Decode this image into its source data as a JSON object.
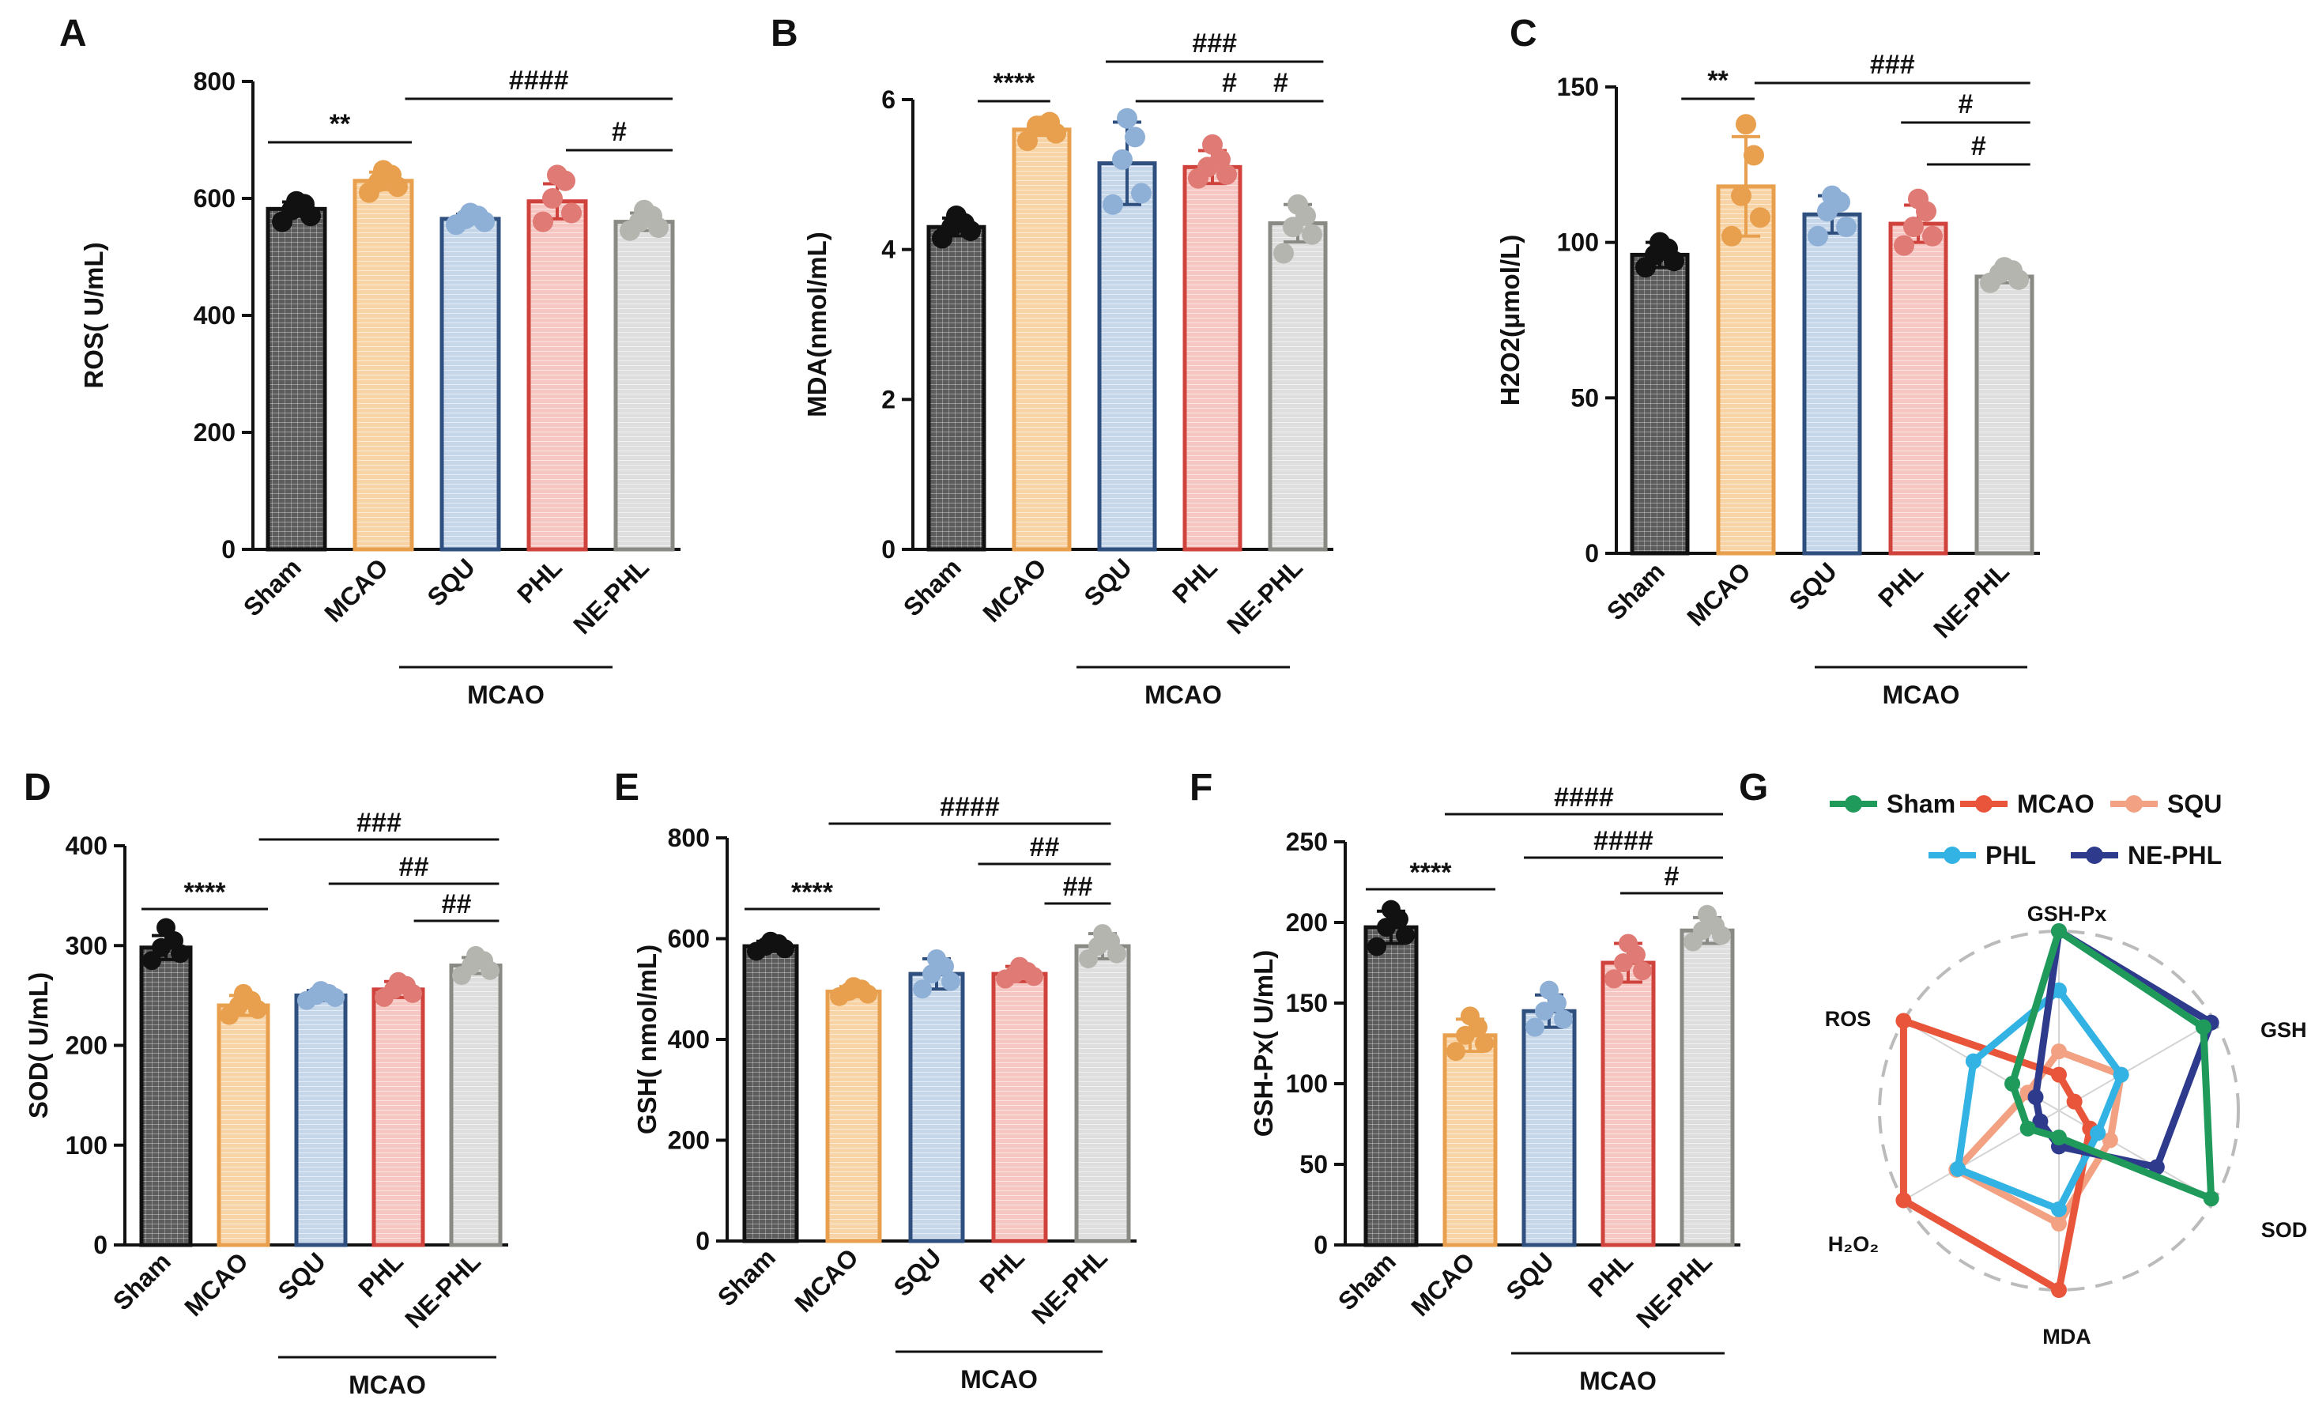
{
  "panel_letters": [
    "A",
    "B",
    "C",
    "D",
    "E",
    "F",
    "G"
  ],
  "group_label": "MCAO",
  "colors": {
    "Sham": {
      "edge": "#111111",
      "fill": "#5c5c5c",
      "dot": "#111111"
    },
    "MCAO": {
      "edge": "#e8a04e",
      "fill": "#f7d3a6",
      "dot": "#e8a04e"
    },
    "SQU": {
      "edge": "#2f4f7f",
      "fill": "#c7d7ea",
      "dot": "#8fb0d6"
    },
    "PHL": {
      "edge": "#d0433c",
      "fill": "#f6c6c2",
      "dot": "#e07a75"
    },
    "NE-PHL": {
      "edge": "#8a8a85",
      "fill": "#dedede",
      "dot": "#b5b5b0"
    }
  },
  "radar_colors": {
    "Sham": "#1f9a5a",
    "MCAO": "#e8553a",
    "SQU": "#f2a283",
    "PHL": "#33b3e3",
    "NE-PHL": "#2e3a8c"
  },
  "chart_data": [
    {
      "type": "bar",
      "panel": "A",
      "ylabel": "ROS( U/mL)",
      "categories": [
        "Sham",
        "MCAO",
        "SQU",
        "PHL",
        "NE-PHL"
      ],
      "values": [
        582,
        630,
        565,
        595,
        560
      ],
      "errors": [
        12,
        15,
        8,
        30,
        15
      ],
      "points": [
        [
          560,
          570,
          580,
          590,
          595
        ],
        [
          610,
          620,
          628,
          640,
          648
        ],
        [
          555,
          560,
          565,
          570,
          575
        ],
        [
          560,
          575,
          600,
          630,
          640
        ],
        [
          545,
          550,
          560,
          570,
          580
        ]
      ],
      "ylim": [
        0,
        800
      ],
      "yticks": [
        0,
        200,
        400,
        600,
        800
      ],
      "significance": [
        {
          "from": 0,
          "to": 1,
          "label": "**"
        },
        {
          "from": 1,
          "to": 4,
          "label": "####"
        },
        {
          "from": 3,
          "to": 4,
          "label": "#"
        }
      ]
    },
    {
      "type": "bar",
      "panel": "B",
      "ylabel": "MDA(nmol/mL)",
      "categories": [
        "Sham",
        "MCAO",
        "SQU",
        "PHL",
        "NE-PHL"
      ],
      "values": [
        4.3,
        5.6,
        5.15,
        5.1,
        4.35
      ],
      "errors": [
        0.12,
        0.08,
        0.55,
        0.22,
        0.25
      ],
      "points": [
        [
          4.15,
          4.25,
          4.3,
          4.35,
          4.45
        ],
        [
          5.45,
          5.55,
          5.65,
          5.7,
          5.65
        ],
        [
          4.6,
          4.75,
          5.2,
          5.5,
          5.75
        ],
        [
          4.95,
          5.0,
          5.1,
          5.2,
          5.4
        ],
        [
          3.95,
          4.2,
          4.3,
          4.45,
          4.6
        ]
      ],
      "ylim": [
        0,
        6
      ],
      "yticks": [
        0,
        2,
        4,
        6
      ],
      "significance": [
        {
          "from": 0,
          "to": 1,
          "label": "****"
        },
        {
          "from": 2,
          "to": 4,
          "label": "###"
        },
        {
          "from": 2,
          "to": 4,
          "label": "#"
        },
        {
          "from": 3,
          "to": 4,
          "label": "#"
        }
      ]
    },
    {
      "type": "bar",
      "panel": "C",
      "ylabel": "H2O2(μmol/L)",
      "categories": [
        "Sham",
        "MCAO",
        "SQU",
        "PHL",
        "NE-PHL"
      ],
      "values": [
        96,
        118,
        109,
        106,
        89
      ],
      "errors": [
        4,
        16,
        6,
        6,
        2
      ],
      "points": [
        [
          92,
          94,
          96,
          98,
          100
        ],
        [
          102,
          108,
          115,
          128,
          138
        ],
        [
          102,
          105,
          110,
          113,
          115
        ],
        [
          99,
          102,
          105,
          110,
          114
        ],
        [
          87,
          88,
          90,
          91,
          92
        ]
      ],
      "ylim": [
        0,
        150
      ],
      "yticks": [
        0,
        50,
        100,
        150
      ],
      "significance": [
        {
          "from": 0,
          "to": 1,
          "label": "**"
        },
        {
          "from": 1,
          "to": 4,
          "label": "###"
        },
        {
          "from": 3,
          "to": 4,
          "label": "#"
        },
        {
          "from": 3,
          "to": 4,
          "label": "#"
        }
      ]
    },
    {
      "type": "bar",
      "panel": "D",
      "ylabel": "SOD( U/mL)",
      "categories": [
        "Sham",
        "MCAO",
        "SQU",
        "PHL",
        "NE-PHL"
      ],
      "values": [
        298,
        240,
        250,
        256,
        280
      ],
      "errors": [
        12,
        10,
        5,
        8,
        8
      ],
      "points": [
        [
          285,
          292,
          298,
          305,
          318
        ],
        [
          230,
          236,
          240,
          245,
          252
        ],
        [
          245,
          248,
          250,
          252,
          255
        ],
        [
          248,
          252,
          256,
          260,
          264
        ],
        [
          270,
          275,
          280,
          285,
          290
        ]
      ],
      "ylim": [
        0,
        400
      ],
      "yticks": [
        0,
        100,
        200,
        300,
        400
      ],
      "significance": [
        {
          "from": 0,
          "to": 1,
          "label": "****"
        },
        {
          "from": 1,
          "to": 4,
          "label": "###"
        },
        {
          "from": 2,
          "to": 4,
          "label": "##"
        },
        {
          "from": 3,
          "to": 4,
          "label": "##"
        }
      ]
    },
    {
      "type": "bar",
      "panel": "E",
      "ylabel": "GSH( nmol/mL)",
      "categories": [
        "Sham",
        "MCAO",
        "SQU",
        "PHL",
        "NE-PHL"
      ],
      "values": [
        585,
        495,
        530,
        530,
        585
      ],
      "errors": [
        10,
        10,
        30,
        15,
        25
      ],
      "points": [
        [
          575,
          580,
          585,
          590,
          595
        ],
        [
          485,
          490,
          495,
          500,
          505
        ],
        [
          500,
          515,
          530,
          545,
          560
        ],
        [
          520,
          525,
          530,
          535,
          545
        ],
        [
          560,
          570,
          585,
          595,
          610
        ]
      ],
      "ylim": [
        0,
        800
      ],
      "yticks": [
        0,
        200,
        400,
        600,
        800
      ],
      "significance": [
        {
          "from": 0,
          "to": 1,
          "label": "****"
        },
        {
          "from": 1,
          "to": 4,
          "label": "####"
        },
        {
          "from": 3,
          "to": 4,
          "label": "##"
        },
        {
          "from": 3,
          "to": 4,
          "label": "##"
        }
      ]
    },
    {
      "type": "bar",
      "panel": "F",
      "ylabel": "GSH-Px( U/mL)",
      "categories": [
        "Sham",
        "MCAO",
        "SQU",
        "PHL",
        "NE-PHL"
      ],
      "values": [
        197,
        130,
        145,
        175,
        195
      ],
      "errors": [
        10,
        10,
        10,
        12,
        8
      ],
      "points": [
        [
          185,
          192,
          197,
          202,
          208
        ],
        [
          120,
          125,
          130,
          135,
          142
        ],
        [
          135,
          140,
          145,
          150,
          158
        ],
        [
          165,
          170,
          175,
          180,
          187
        ],
        [
          188,
          192,
          195,
          198,
          205
        ]
      ],
      "ylim": [
        0,
        250
      ],
      "yticks": [
        0,
        50,
        100,
        150,
        200,
        250
      ],
      "significance": [
        {
          "from": 0,
          "to": 1,
          "label": "****"
        },
        {
          "from": 1,
          "to": 4,
          "label": "####"
        },
        {
          "from": 2,
          "to": 4,
          "label": "####"
        },
        {
          "from": 3,
          "to": 4,
          "label": "#"
        }
      ]
    },
    {
      "type": "radar",
      "panel": "G",
      "axes": [
        "GSH-Px",
        "GSH",
        "SOD",
        "MDA",
        "H2O2",
        "ROS"
      ],
      "axis_labels": [
        "GSH-Px",
        "GSH",
        "SOD",
        "MDA",
        "H₂O₂",
        "ROS"
      ],
      "rmax": 1.0,
      "series": [
        {
          "name": "Sham",
          "values": [
            1.0,
            0.93,
            0.98,
            0.15,
            0.2,
            0.3
          ]
        },
        {
          "name": "MCAO",
          "values": [
            0.2,
            0.1,
            0.2,
            1.0,
            1.0,
            1.0
          ]
        },
        {
          "name": "SQU",
          "values": [
            0.33,
            0.4,
            0.33,
            0.63,
            0.66,
            0.2
          ]
        },
        {
          "name": "PHL",
          "values": [
            0.67,
            0.4,
            0.25,
            0.55,
            0.65,
            0.55
          ]
        },
        {
          "name": "NE-PHL",
          "values": [
            1.0,
            0.98,
            0.63,
            0.2,
            0.12,
            0.15
          ]
        }
      ]
    }
  ]
}
